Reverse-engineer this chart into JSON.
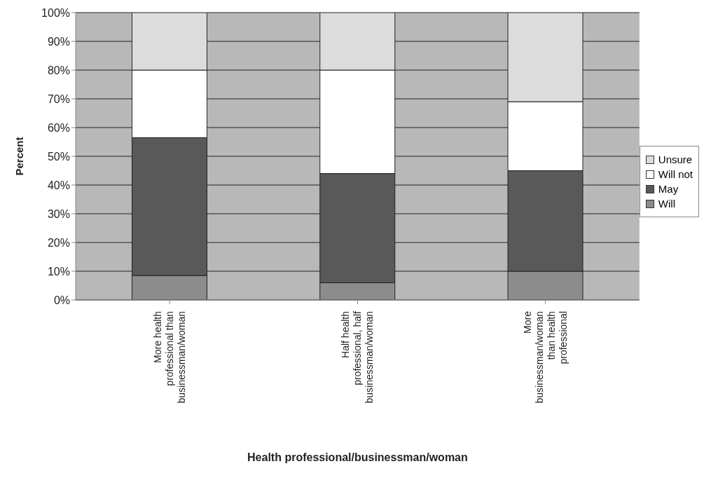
{
  "chart_data": {
    "type": "bar",
    "stacked": true,
    "xlabel": "Health professional/businessman/woman",
    "ylabel": "Percent",
    "categories": [
      "More health professional than businessman/woman",
      "Half health professional, half businessman/woman",
      "More businessman/woman than health professional"
    ],
    "series": [
      {
        "name": "Will",
        "color": "#8c8c8c",
        "values": [
          8.5,
          6,
          10
        ]
      },
      {
        "name": "May",
        "color": "#595959",
        "values": [
          48,
          38,
          35
        ]
      },
      {
        "name": "Will not",
        "color": "#ffffff",
        "values": [
          23.5,
          36,
          24
        ]
      },
      {
        "name": "Unsure",
        "color": "#dcdcdc",
        "values": [
          20,
          20,
          31
        ]
      }
    ],
    "ylim": [
      0,
      100
    ],
    "yticks": [
      {
        "value": 0,
        "label": "0%"
      },
      {
        "value": 10,
        "label": "10%"
      },
      {
        "value": 20,
        "label": "20%"
      },
      {
        "value": 30,
        "label": "30%"
      },
      {
        "value": 40,
        "label": "40%"
      },
      {
        "value": 50,
        "label": "50%"
      },
      {
        "value": 60,
        "label": "60%"
      },
      {
        "value": 70,
        "label": "70%"
      },
      {
        "value": 80,
        "label": "80%"
      },
      {
        "value": 90,
        "label": "90%"
      },
      {
        "value": 100,
        "label": "100%"
      }
    ],
    "grid": "y",
    "legend": "right"
  }
}
